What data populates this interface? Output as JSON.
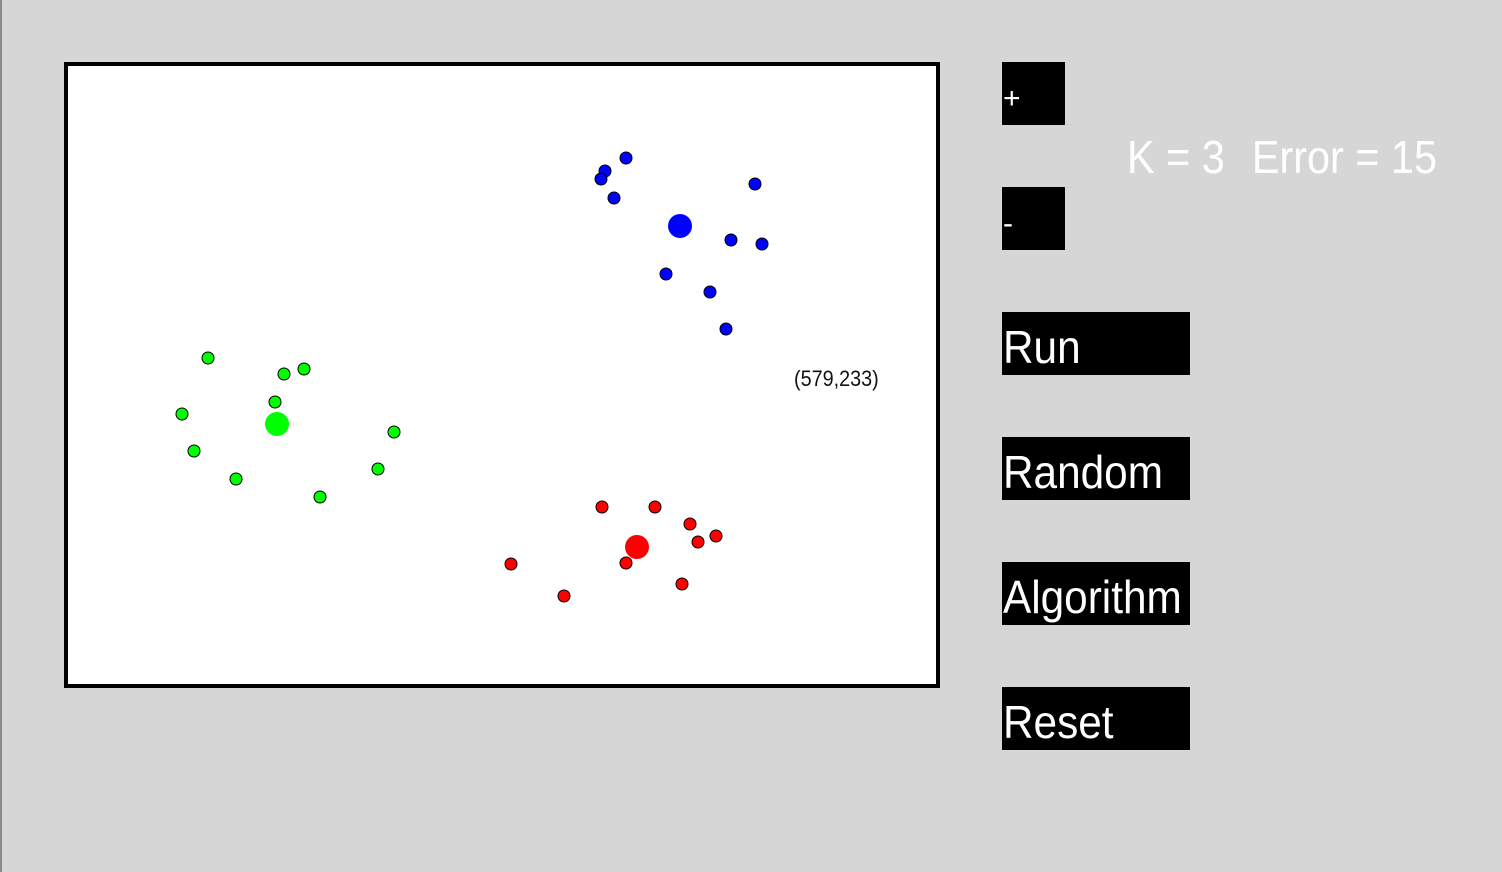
{
  "canvas": {
    "coordinate_readout": "(579,233)",
    "clusters": [
      {
        "name": "blue",
        "color": "#0000ff",
        "centroid": [
          612,
          160
        ],
        "points": [
          [
            537,
            105
          ],
          [
            558,
            92
          ],
          [
            533,
            113
          ],
          [
            546,
            132
          ],
          [
            687,
            118
          ],
          [
            663,
            174
          ],
          [
            694,
            178
          ],
          [
            598,
            208
          ],
          [
            642,
            226
          ],
          [
            658,
            263
          ]
        ]
      },
      {
        "name": "green",
        "color": "#00ff00",
        "centroid": [
          209,
          358
        ],
        "points": [
          [
            140,
            292
          ],
          [
            216,
            308
          ],
          [
            236,
            303
          ],
          [
            114,
            348
          ],
          [
            207,
            336
          ],
          [
            126,
            385
          ],
          [
            326,
            366
          ],
          [
            168,
            413
          ],
          [
            310,
            403
          ],
          [
            252,
            431
          ]
        ]
      },
      {
        "name": "red",
        "color": "#ff0000",
        "centroid": [
          569,
          481
        ],
        "points": [
          [
            534,
            441
          ],
          [
            587,
            441
          ],
          [
            622,
            458
          ],
          [
            648,
            470
          ],
          [
            630,
            476
          ],
          [
            558,
            497
          ],
          [
            443,
            498
          ],
          [
            614,
            518
          ],
          [
            496,
            530
          ]
        ]
      }
    ]
  },
  "controls": {
    "plus_label": "+",
    "minus_label": "-",
    "run_label": "Run",
    "random_label": "Random",
    "algorithm_label": "Algorithm",
    "reset_label": "Reset"
  },
  "status": {
    "k_text": "K = 3",
    "error_text": "Error = 15"
  }
}
